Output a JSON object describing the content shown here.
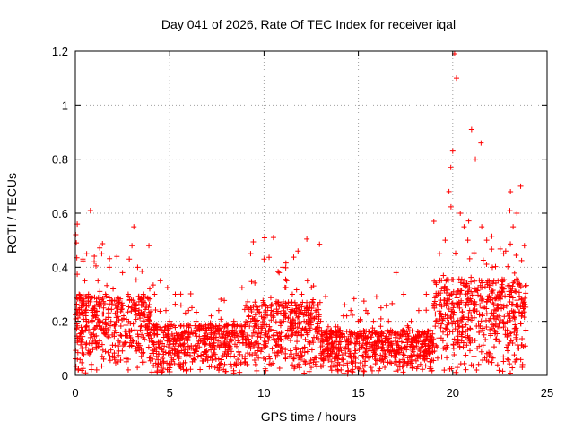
{
  "chart_data": {
    "type": "scatter",
    "title": "Day 041 of 2026, Rate Of TEC Index for receiver iqal",
    "xlabel": "GPS time / hours",
    "ylabel": "ROTI / TECUs",
    "xlim": [
      0,
      25
    ],
    "ylim": [
      0,
      1.2
    ],
    "xticks": [
      0,
      5,
      10,
      15,
      20,
      25
    ],
    "xtick_labels": [
      "0",
      "5",
      "10",
      "15",
      "20",
      "25"
    ],
    "yticks": [
      0,
      0.2,
      0.4,
      0.6,
      0.8,
      1.0,
      1.2
    ],
    "ytick_labels": [
      "0",
      "0.2",
      "0.4",
      "0.6",
      "0.8",
      "1",
      "1.2"
    ],
    "grid": true,
    "marker": "plus",
    "color": "#ff0000",
    "series": [
      {
        "x": [
          0.05,
          0.1,
          0.2,
          0.3,
          0.4,
          0.5,
          0.6,
          0.7,
          0.8,
          0.9,
          1.0,
          1.2,
          1.4,
          1.6,
          1.8,
          2.0,
          2.2,
          2.5,
          2.8,
          3.0,
          3.1,
          3.3,
          3.6,
          3.9,
          4.2,
          4.5,
          4.8,
          5.0,
          5.3,
          5.6,
          6.0,
          6.4,
          6.8,
          7.2,
          7.6,
          8.0,
          8.4,
          8.8,
          9.2,
          9.6,
          10.0,
          10.2,
          10.5,
          10.8,
          11.0,
          11.2,
          11.5,
          11.8,
          12.0,
          12.3,
          12.6,
          13.0,
          13.4,
          13.8,
          14.2,
          14.6,
          15.0,
          15.4,
          15.8,
          16.2,
          16.6,
          17.0,
          17.4,
          17.8,
          18.2,
          18.6,
          19.0,
          19.3,
          19.6,
          19.8,
          19.9,
          20.0,
          20.1,
          20.2,
          20.4,
          20.6,
          20.8,
          21.0,
          21.2,
          21.5,
          21.8,
          22.1,
          22.4,
          22.7,
          23.0,
          23.2,
          23.4,
          23.6,
          23.8,
          0.15,
          0.35,
          0.75,
          1.1,
          1.5,
          2.3,
          2.7,
          3.2,
          3.5,
          4.1,
          5.5,
          6.2,
          7.4,
          9.1,
          10.1,
          11.7,
          12.8,
          14.0,
          16.4,
          17.1,
          18.8,
          19.5,
          19.7,
          20.05,
          20.3,
          20.5,
          20.9,
          21.3,
          22.0,
          22.9,
          23.3,
          23.5,
          23.7
        ],
        "y": [
          0.49,
          0.56,
          0.3,
          0.25,
          0.43,
          0.35,
          0.45,
          0.3,
          0.61,
          0.2,
          0.42,
          0.35,
          0.45,
          0.3,
          0.4,
          0.32,
          0.44,
          0.38,
          0.3,
          0.48,
          0.55,
          0.4,
          0.3,
          0.48,
          0.3,
          0.35,
          0.24,
          0.2,
          0.3,
          0.26,
          0.24,
          0.2,
          0.18,
          0.22,
          0.24,
          0.16,
          0.2,
          0.18,
          0.22,
          0.2,
          0.43,
          0.25,
          0.51,
          0.38,
          0.4,
          0.35,
          0.3,
          0.46,
          0.3,
          0.35,
          0.28,
          0.2,
          0.18,
          0.18,
          0.22,
          0.24,
          0.2,
          0.24,
          0.2,
          0.25,
          0.2,
          0.38,
          0.3,
          0.2,
          0.24,
          0.3,
          0.57,
          0.45,
          0.5,
          0.68,
          0.77,
          0.83,
          1.19,
          1.1,
          0.6,
          0.55,
          0.5,
          0.91,
          0.8,
          0.86,
          0.5,
          0.4,
          0.35,
          0.45,
          0.3,
          0.55,
          0.6,
          0.7,
          0.48,
          0.02,
          0.1,
          0.08,
          0.12,
          0.06,
          0.09,
          0.05,
          0.1,
          0.07,
          0.06,
          0.04,
          0.05,
          0.03,
          0.04,
          0.06,
          0.08,
          0.05,
          0.04,
          0.03,
          0.02,
          0.05,
          0.1,
          0.15,
          0.2,
          0.12,
          0.18,
          0.14,
          0.1,
          0.08,
          0.06,
          0.05,
          0.1,
          0.04
        ]
      }
    ]
  }
}
